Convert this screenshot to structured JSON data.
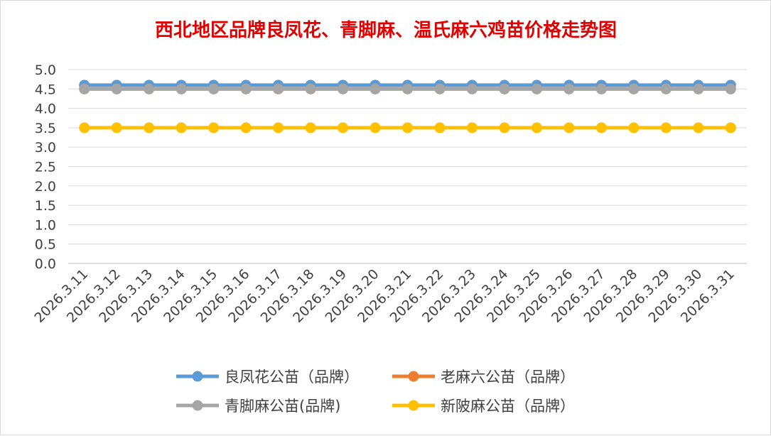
{
  "chart_data": {
    "type": "line",
    "title": "西北地区品牌良凤花、青脚麻、温氏麻六鸡苗价格走势图",
    "xlabel": "",
    "ylabel": "",
    "ylim": [
      0,
      5
    ],
    "yticks": [
      "0.0",
      "0.5",
      "1.0",
      "1.5",
      "2.0",
      "2.5",
      "3.0",
      "3.5",
      "4.0",
      "4.5",
      "5.0"
    ],
    "grid": true,
    "legend_position": "bottom",
    "categories": [
      "2026.3.11",
      "2026.3.12",
      "2026.3.13",
      "2026.3.14",
      "2026.3.15",
      "2026.3.16",
      "2026.3.17",
      "2026.3.18",
      "2026.3.19",
      "2026.3.20",
      "2026.3.21",
      "2026.3.22",
      "2026.3.23",
      "2026.3.24",
      "2026.3.25",
      "2026.3.26",
      "2026.3.27",
      "2026.3.28",
      "2026.3.29",
      "2026.3.30",
      "2026.3.31"
    ],
    "series": [
      {
        "name": "良凤花公苗（品牌）",
        "color": "#5b9bd5",
        "values": [
          4.6,
          4.6,
          4.6,
          4.6,
          4.6,
          4.6,
          4.6,
          4.6,
          4.6,
          4.6,
          4.6,
          4.6,
          4.6,
          4.6,
          4.6,
          4.6,
          4.6,
          4.6,
          4.6,
          4.6,
          4.6
        ]
      },
      {
        "name": "老麻六公苗（品牌）",
        "color": "#ed7d31",
        "values": [
          4.5,
          4.5,
          4.5,
          4.5,
          4.5,
          4.5,
          4.5,
          4.5,
          4.5,
          4.5,
          4.5,
          4.5,
          4.5,
          4.5,
          4.5,
          4.5,
          4.5,
          4.5,
          4.5,
          4.5,
          4.5
        ]
      },
      {
        "name": "青脚麻公苗(品牌)",
        "color": "#a5a5a5",
        "values": [
          4.5,
          4.5,
          4.5,
          4.5,
          4.5,
          4.5,
          4.5,
          4.5,
          4.5,
          4.5,
          4.5,
          4.5,
          4.5,
          4.5,
          4.5,
          4.5,
          4.5,
          4.5,
          4.5,
          4.5,
          4.5
        ]
      },
      {
        "name": "新陂麻公苗（品牌）",
        "color": "#ffc000",
        "values": [
          3.5,
          3.5,
          3.5,
          3.5,
          3.5,
          3.5,
          3.5,
          3.5,
          3.5,
          3.5,
          3.5,
          3.5,
          3.5,
          3.5,
          3.5,
          3.5,
          3.5,
          3.5,
          3.5,
          3.5,
          3.5
        ]
      }
    ]
  }
}
